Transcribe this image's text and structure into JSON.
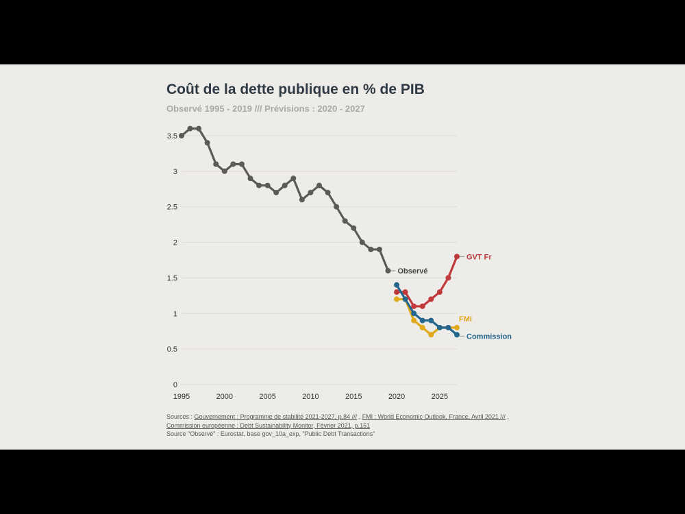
{
  "chart_data": {
    "type": "line",
    "title": "Coût de la dette publique en % de PIB",
    "subtitle": "Observé 1995 - 2019 /// Prévisions : 2020 - 2027",
    "xlim": [
      1995,
      2027
    ],
    "ylim": [
      0,
      3.5
    ],
    "xticks": [
      1995,
      2000,
      2005,
      2010,
      2015,
      2020,
      2025
    ],
    "yticks": [
      0,
      0.5,
      1,
      1.5,
      2,
      2.5,
      3,
      3.5
    ],
    "ytick_labels": [
      "0",
      "0.5",
      "1",
      "1.5",
      "2",
      "2.5",
      "3",
      "3.5"
    ],
    "grid": "horizontal",
    "series": [
      {
        "name": "Observé",
        "color": "#5c5a56",
        "x": [
          1995,
          1996,
          1997,
          1998,
          1999,
          2000,
          2001,
          2002,
          2003,
          2004,
          2005,
          2006,
          2007,
          2008,
          2009,
          2010,
          2011,
          2012,
          2013,
          2014,
          2015,
          2016,
          2017,
          2018,
          2019
        ],
        "y": [
          3.5,
          3.6,
          3.6,
          3.4,
          3.1,
          3.0,
          3.1,
          3.1,
          2.9,
          2.8,
          2.8,
          2.7,
          2.8,
          2.9,
          2.6,
          2.7,
          2.8,
          2.7,
          2.5,
          2.3,
          2.2,
          2.0,
          1.9,
          1.9,
          1.6
        ]
      },
      {
        "name": "GVT Fr",
        "color": "#c0393b",
        "x": [
          2020,
          2021,
          2022,
          2023,
          2024,
          2025,
          2026,
          2027
        ],
        "y": [
          1.3,
          1.3,
          1.1,
          1.1,
          1.2,
          1.3,
          1.5,
          1.8
        ]
      },
      {
        "name": "FMI",
        "color": "#e0a91c",
        "x": [
          2020,
          2021,
          2022,
          2023,
          2024,
          2025,
          2026,
          2027
        ],
        "y": [
          1.2,
          1.2,
          0.9,
          0.8,
          0.7,
          0.8,
          0.8,
          0.8
        ]
      },
      {
        "name": "Commission",
        "color": "#25668f",
        "x": [
          2020,
          2021,
          2022,
          2023,
          2024,
          2025,
          2026,
          2027
        ],
        "y": [
          1.4,
          1.2,
          1.0,
          0.9,
          0.9,
          0.8,
          0.8,
          0.7
        ]
      }
    ]
  },
  "sources": {
    "prefix": "Sources : ",
    "link_gouv": "Gouvernement : Programme de stabilité 2021-2027, p.84 ///",
    "sep1": " , ",
    "link_fmi": "FMI : World Economic Outlook, France, Avril 2021 ///",
    "sep2": " , ",
    "link_commission": "Commission européenne : Debt Sustainability Monitor, Février 2021, p.151",
    "observe_note": "Source \"Observé\" : Eurostat, base gov_10a_exp, \"Public Debt Transactions\""
  }
}
